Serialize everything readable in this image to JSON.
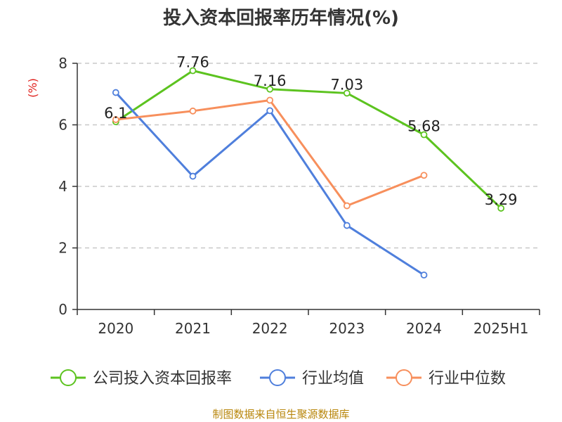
{
  "chart_data": {
    "type": "line",
    "title": "投入资本回报率历年情况(%)",
    "ylabel": "(%)",
    "xlabel": "",
    "categories": [
      "2020",
      "2021",
      "2022",
      "2023",
      "2024",
      "2025H1"
    ],
    "ylim": [
      0,
      8
    ],
    "yticks": [
      0,
      2,
      4,
      6,
      8
    ],
    "grid": true,
    "legend_position": "bottom",
    "series": [
      {
        "name": "公司投入资本回报率",
        "color": "#5cc31f",
        "values": [
          6.1,
          7.76,
          7.16,
          7.03,
          5.68,
          3.29
        ],
        "labels": [
          "6.1",
          "7.76",
          "7.16",
          "7.03",
          "5.68",
          "3.29"
        ]
      },
      {
        "name": "行业均值",
        "color": "#4f7fdc",
        "values": [
          7.05,
          4.33,
          6.46,
          2.73,
          1.12,
          null
        ],
        "labels": null
      },
      {
        "name": "行业中位数",
        "color": "#f78f5c",
        "values": [
          6.17,
          6.45,
          6.8,
          3.37,
          4.36,
          null
        ],
        "labels": null
      }
    ],
    "source": "制图数据来自恒生聚源数据库"
  }
}
